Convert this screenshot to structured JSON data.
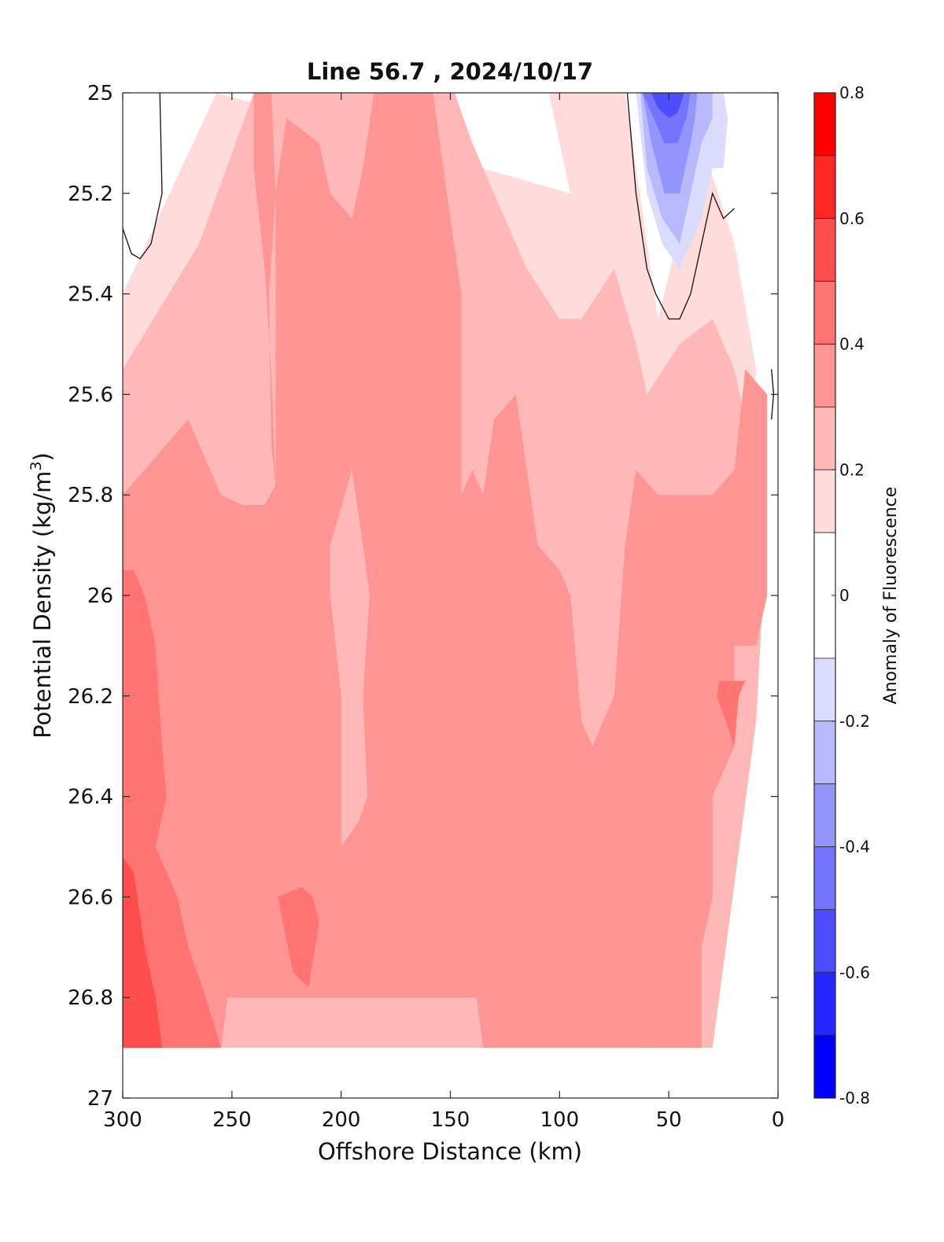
{
  "chart_data": {
    "type": "contour",
    "title": "Line 56.7 , 2024/10/17",
    "xlabel": "Offshore Distance (km)",
    "ylabel_main": "Potential Density (kg/m",
    "ylabel_sup": "3",
    "ylabel_tail": ")",
    "xlim": [
      300,
      0
    ],
    "ylim": [
      25,
      27
    ],
    "x_reversed": true,
    "y_reversed": true,
    "xticks": [
      300,
      250,
      200,
      150,
      100,
      50,
      0
    ],
    "xtick_labels": [
      "300",
      "250",
      "200",
      "150",
      "100",
      "50",
      "0"
    ],
    "yticks": [
      25,
      25.2,
      25.4,
      25.6,
      25.8,
      26,
      26.2,
      26.4,
      26.6,
      26.8,
      27
    ],
    "ytick_labels": [
      "25",
      "25.2",
      "25.4",
      "25.6",
      "25.8",
      "26",
      "26.2",
      "26.4",
      "26.6",
      "26.8",
      "27"
    ],
    "grid": false,
    "colorbar": {
      "label": "Anomaly of Fluorescence",
      "range": [
        -0.8,
        0.8
      ],
      "ticks": [
        0.8,
        0.6,
        0.4,
        0.2,
        0,
        -0.2,
        -0.4,
        -0.6,
        -0.8
      ],
      "tick_labels": [
        "0.8",
        "0.6",
        "0.4",
        "0.2",
        "0",
        "-0.2",
        "-0.4",
        "-0.6",
        "-0.8"
      ],
      "levels": [
        {
          "range": [
            0.7,
            0.8
          ],
          "color": "#ff0000"
        },
        {
          "range": [
            0.6,
            0.7
          ],
          "color": "#ff2626"
        },
        {
          "range": [
            0.5,
            0.6
          ],
          "color": "#ff4d4d"
        },
        {
          "range": [
            0.4,
            0.5
          ],
          "color": "#ff7373"
        },
        {
          "range": [
            0.3,
            0.4
          ],
          "color": "#ff9494"
        },
        {
          "range": [
            0.2,
            0.3
          ],
          "color": "#ffb8b8"
        },
        {
          "range": [
            0.1,
            0.2
          ],
          "color": "#ffdbdb"
        },
        {
          "range": [
            -0.1,
            0.1
          ],
          "color": "#ffffff"
        },
        {
          "range": [
            -0.2,
            -0.1
          ],
          "color": "#dbdbff"
        },
        {
          "range": [
            -0.3,
            -0.2
          ],
          "color": "#b8b8ff"
        },
        {
          "range": [
            -0.4,
            -0.3
          ],
          "color": "#9494ff"
        },
        {
          "range": [
            -0.5,
            -0.4
          ],
          "color": "#7373ff"
        },
        {
          "range": [
            -0.6,
            -0.5
          ],
          "color": "#4d4dff"
        },
        {
          "range": [
            -0.7,
            -0.6
          ],
          "color": "#2626ff"
        },
        {
          "range": [
            -0.8,
            -0.7
          ],
          "color": "#0000ff"
        }
      ]
    },
    "regions": [
      {
        "name": "band-0p1",
        "level": 0.15,
        "color": "#ffdbdb",
        "points": [
          [
            257,
            25
          ],
          [
            300,
            25.4
          ],
          [
            300,
            26.9
          ],
          [
            60,
            26.9
          ],
          [
            40,
            26.6
          ],
          [
            30,
            26.3
          ],
          [
            20,
            26
          ],
          [
            10,
            25.55
          ],
          [
            20,
            25.3
          ],
          [
            35,
            25.1
          ],
          [
            55,
            25.45
          ],
          [
            70,
            25
          ],
          [
            105,
            25
          ],
          [
            100,
            25.1
          ],
          [
            95,
            25.2
          ]
        ]
      },
      {
        "name": "band-0p2",
        "level": 0.25,
        "color": "#ffb8b8",
        "points": [
          [
            240,
            25
          ],
          [
            265,
            25.3
          ],
          [
            300,
            25.55
          ],
          [
            300,
            26.9
          ],
          [
            30,
            26.9
          ],
          [
            10,
            26.25
          ],
          [
            5,
            25.85
          ],
          [
            15,
            25.65
          ],
          [
            20,
            25.55
          ],
          [
            30,
            25.45
          ],
          [
            45,
            25.5
          ],
          [
            60,
            25.6
          ],
          [
            65,
            25.5
          ],
          [
            75,
            25.35
          ],
          [
            90,
            25.45
          ],
          [
            100,
            25.45
          ],
          [
            115,
            25.35
          ],
          [
            130,
            25.2
          ],
          [
            140,
            25.1
          ],
          [
            148,
            25
          ]
        ]
      },
      {
        "name": "band-0p3",
        "level": 0.35,
        "color": "#ff9494",
        "points": [
          [
            230,
            25.2
          ],
          [
            225,
            25.05
          ],
          [
            210,
            25.1
          ],
          [
            205,
            25.2
          ],
          [
            195,
            25.25
          ],
          [
            190,
            25.15
          ],
          [
            185,
            25
          ],
          [
            158,
            25
          ],
          [
            150,
            25.25
          ],
          [
            145,
            25.4
          ],
          [
            145,
            25.8
          ],
          [
            140,
            25.75
          ],
          [
            135,
            25.8
          ],
          [
            130,
            25.65
          ],
          [
            120,
            25.6
          ],
          [
            110,
            25.9
          ],
          [
            100,
            25.95
          ],
          [
            95,
            26
          ],
          [
            90,
            26.25
          ],
          [
            85,
            26.3
          ],
          [
            75,
            26.2
          ],
          [
            70,
            25.9
          ],
          [
            65,
            25.75
          ],
          [
            55,
            25.8
          ],
          [
            40,
            25.8
          ],
          [
            30,
            25.8
          ],
          [
            20,
            25.75
          ],
          [
            15,
            25.55
          ],
          [
            5,
            25.6
          ],
          [
            5,
            26
          ],
          [
            10,
            26.1
          ],
          [
            20,
            26.1
          ],
          [
            20,
            26.3
          ],
          [
            30,
            26.4
          ],
          [
            30,
            26.6
          ],
          [
            35,
            26.7
          ],
          [
            35,
            26.9
          ],
          [
            135,
            26.9
          ],
          [
            138,
            26.8
          ],
          [
            252,
            26.8
          ],
          [
            255,
            26.9
          ],
          [
            300,
            26.9
          ],
          [
            300,
            25.8
          ],
          [
            290,
            25.75
          ],
          [
            280,
            25.7
          ],
          [
            270,
            25.65
          ],
          [
            265,
            25.7
          ],
          [
            255,
            25.8
          ],
          [
            245,
            25.82
          ],
          [
            235,
            25.82
          ],
          [
            230,
            25.78
          ]
        ]
      },
      {
        "name": "band-0p3-upper-left",
        "level": 0.35,
        "color": "#ff9494",
        "points": [
          [
            230,
            25.2
          ],
          [
            232,
            25
          ],
          [
            240,
            25
          ],
          [
            240,
            25.15
          ],
          [
            235,
            25.35
          ],
          [
            232,
            25.55
          ],
          [
            230,
            25.78
          ],
          [
            232,
            25.7
          ],
          [
            233,
            25.4
          ]
        ]
      },
      {
        "name": "inner-0p2",
        "level": 0.25,
        "color": "#ffb8b8",
        "points": [
          [
            195,
            25.75
          ],
          [
            190,
            25.9
          ],
          [
            187,
            26
          ],
          [
            190,
            26.2
          ],
          [
            188,
            26.4
          ],
          [
            192,
            26.45
          ],
          [
            200,
            26.5
          ],
          [
            200,
            26.2
          ],
          [
            205,
            26
          ],
          [
            205,
            25.9
          ]
        ]
      },
      {
        "name": "band-0p4",
        "level": 0.45,
        "color": "#ff7373",
        "points": [
          [
            300,
            25.95
          ],
          [
            295,
            25.95
          ],
          [
            290,
            26
          ],
          [
            285,
            26.1
          ],
          [
            282,
            26.3
          ],
          [
            280,
            26.4
          ],
          [
            285,
            26.5
          ],
          [
            275,
            26.6
          ],
          [
            270,
            26.7
          ],
          [
            262,
            26.8
          ],
          [
            255,
            26.9
          ],
          [
            300,
            26.9
          ]
        ]
      },
      {
        "name": "band-0p4-patch",
        "level": 0.45,
        "color": "#ff7373",
        "points": [
          [
            218,
            26.58
          ],
          [
            213,
            26.6
          ],
          [
            210,
            26.65
          ],
          [
            215,
            26.78
          ],
          [
            222,
            26.75
          ],
          [
            229,
            26.6
          ]
        ]
      },
      {
        "name": "band-0p4-right",
        "level": 0.45,
        "color": "#ff7373",
        "points": [
          [
            15,
            26.17
          ],
          [
            18,
            26.2
          ],
          [
            20,
            26.3
          ],
          [
            28,
            26.2
          ],
          [
            27,
            26.17
          ]
        ]
      },
      {
        "name": "band-0p5",
        "level": 0.55,
        "color": "#ff4d4d",
        "points": [
          [
            300,
            26.52
          ],
          [
            295,
            26.55
          ],
          [
            290,
            26.7
          ],
          [
            285,
            26.8
          ],
          [
            282,
            26.9
          ],
          [
            300,
            26.9
          ]
        ]
      },
      {
        "name": "band-neg0p1",
        "level": -0.15,
        "color": "#dbdbff",
        "points": [
          [
            65,
            25
          ],
          [
            60,
            25.2
          ],
          [
            53,
            25.3
          ],
          [
            45,
            25.35
          ],
          [
            40,
            25.3
          ],
          [
            35,
            25.25
          ],
          [
            30,
            25.15
          ],
          [
            25,
            25.15
          ],
          [
            23,
            25.05
          ],
          [
            25,
            25
          ]
        ]
      },
      {
        "name": "band-neg0p2",
        "level": -0.25,
        "color": "#b8b8ff",
        "points": [
          [
            63,
            25
          ],
          [
            60,
            25.15
          ],
          [
            53,
            25.25
          ],
          [
            45,
            25.3
          ],
          [
            40,
            25.2
          ],
          [
            35,
            25.1
          ],
          [
            30,
            25.05
          ],
          [
            30,
            25
          ]
        ]
      },
      {
        "name": "band-neg0p3",
        "level": -0.35,
        "color": "#9494ff",
        "points": [
          [
            62,
            25
          ],
          [
            58,
            25.1
          ],
          [
            52,
            25.2
          ],
          [
            45,
            25.2
          ],
          [
            40,
            25.1
          ],
          [
            38,
            25.05
          ],
          [
            37,
            25
          ]
        ]
      },
      {
        "name": "band-neg0p4",
        "level": -0.45,
        "color": "#7373ff",
        "points": [
          [
            62,
            25
          ],
          [
            57,
            25.05
          ],
          [
            52,
            25.1
          ],
          [
            46,
            25.1
          ],
          [
            42,
            25.05
          ],
          [
            40,
            25
          ]
        ]
      },
      {
        "name": "band-neg0p5",
        "level": -0.55,
        "color": "#4d4dff",
        "points": [
          [
            58,
            25
          ],
          [
            55,
            25.03
          ],
          [
            50,
            25.05
          ],
          [
            46,
            25.04
          ],
          [
            43,
            25
          ]
        ]
      }
    ],
    "contour_lines": [
      {
        "name": "contour-zero-left",
        "level": 0,
        "points": [
          [
            283,
            25
          ],
          [
            282,
            25.2
          ],
          [
            287,
            25.3
          ],
          [
            292,
            25.33
          ],
          [
            296,
            25.32
          ],
          [
            300,
            25.27
          ]
        ]
      },
      {
        "name": "contour-zero-right",
        "level": 0,
        "points": [
          [
            69,
            25
          ],
          [
            65,
            25.2
          ],
          [
            60,
            25.35
          ],
          [
            56,
            25.4
          ],
          [
            50,
            25.45
          ],
          [
            45,
            25.45
          ],
          [
            40,
            25.4
          ],
          [
            35,
            25.3
          ],
          [
            30,
            25.2
          ],
          [
            28,
            25.22
          ],
          [
            25,
            25.25
          ],
          [
            20,
            25.23
          ]
        ]
      },
      {
        "name": "contour-zero-coast",
        "level": 0,
        "points": [
          [
            3,
            25.55
          ],
          [
            2,
            25.6
          ],
          [
            3,
            25.65
          ]
        ]
      }
    ]
  }
}
